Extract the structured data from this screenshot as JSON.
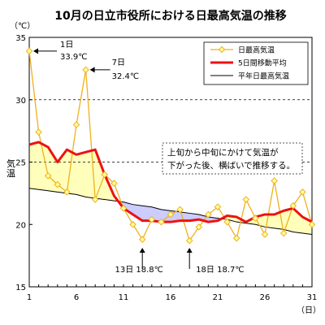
{
  "chart_data": {
    "type": "line",
    "title": "10月の日立市役所における日最高気温の推移",
    "ylabel": "気温",
    "y_unit": "（℃）",
    "x_unit": "（日）",
    "ylim": [
      15,
      35
    ],
    "xlim": [
      1,
      31
    ],
    "y_ticks": [
      "15",
      "20",
      "25",
      "30",
      "35"
    ],
    "x_ticks": [
      "1",
      "6",
      "11",
      "16",
      "21",
      "26",
      "31"
    ],
    "grid": "dashed horizontal at 25 and 30",
    "legend_position": "top-right",
    "colors": {
      "daily": "#f0b020",
      "daily_marker_fill": "#ffff99",
      "moving": "#ee1111",
      "normal": "#000000",
      "area_above": "#ffffbb",
      "area_below": "#ccccff",
      "gridline": "#000000"
    },
    "x": [
      1,
      2,
      3,
      4,
      5,
      6,
      7,
      8,
      9,
      10,
      11,
      12,
      13,
      14,
      15,
      16,
      17,
      18,
      19,
      20,
      21,
      22,
      23,
      24,
      25,
      26,
      27,
      28,
      29,
      30,
      31
    ],
    "series": [
      {
        "name": "日最高気温",
        "key": "daily",
        "values": [
          33.9,
          27.4,
          23.9,
          23.2,
          22.6,
          28.0,
          32.4,
          22.0,
          24.0,
          23.3,
          21.3,
          20.0,
          18.8,
          20.4,
          20.2,
          20.8,
          21.2,
          18.7,
          19.8,
          20.8,
          21.4,
          20.2,
          18.9,
          22.0,
          20.5,
          19.2,
          23.5,
          19.3,
          21.5,
          22.6,
          20.0
        ]
      },
      {
        "name": "5日間移動平均",
        "key": "moving",
        "values": [
          26.4,
          26.6,
          26.2,
          25.0,
          26.0,
          25.6,
          25.8,
          26.0,
          24.0,
          22.3,
          21.3,
          20.8,
          20.3,
          20.3,
          20.2,
          20.2,
          20.3,
          20.3,
          20.4,
          20.2,
          20.3,
          20.7,
          20.6,
          20.2,
          20.6,
          20.8,
          20.8,
          21.1,
          21.3,
          20.6,
          20.2
        ]
      },
      {
        "name": "平年日最高気温",
        "key": "normal",
        "values": [
          22.9,
          22.8,
          22.7,
          22.6,
          22.5,
          22.4,
          22.2,
          22.1,
          22.0,
          21.9,
          21.8,
          21.6,
          21.5,
          21.4,
          21.2,
          21.1,
          21.0,
          20.9,
          20.8,
          20.6,
          20.5,
          20.4,
          20.2,
          20.1,
          20.0,
          19.8,
          19.7,
          19.6,
          19.4,
          19.3,
          19.2
        ]
      }
    ],
    "annotations": [
      {
        "key": "d1",
        "day": 1,
        "line1": "1日",
        "line2": "33.9℃"
      },
      {
        "key": "d7",
        "day": 7,
        "line1": "7日",
        "line2": "32.4℃"
      },
      {
        "key": "d13",
        "day": 13,
        "label": "13日  18.8℃"
      },
      {
        "key": "d18",
        "day": 18,
        "label": "18日  18.7℃"
      }
    ],
    "note": [
      "上旬から中旬にかけて気温が",
      "下がった後、横ばいで推移する。"
    ]
  }
}
